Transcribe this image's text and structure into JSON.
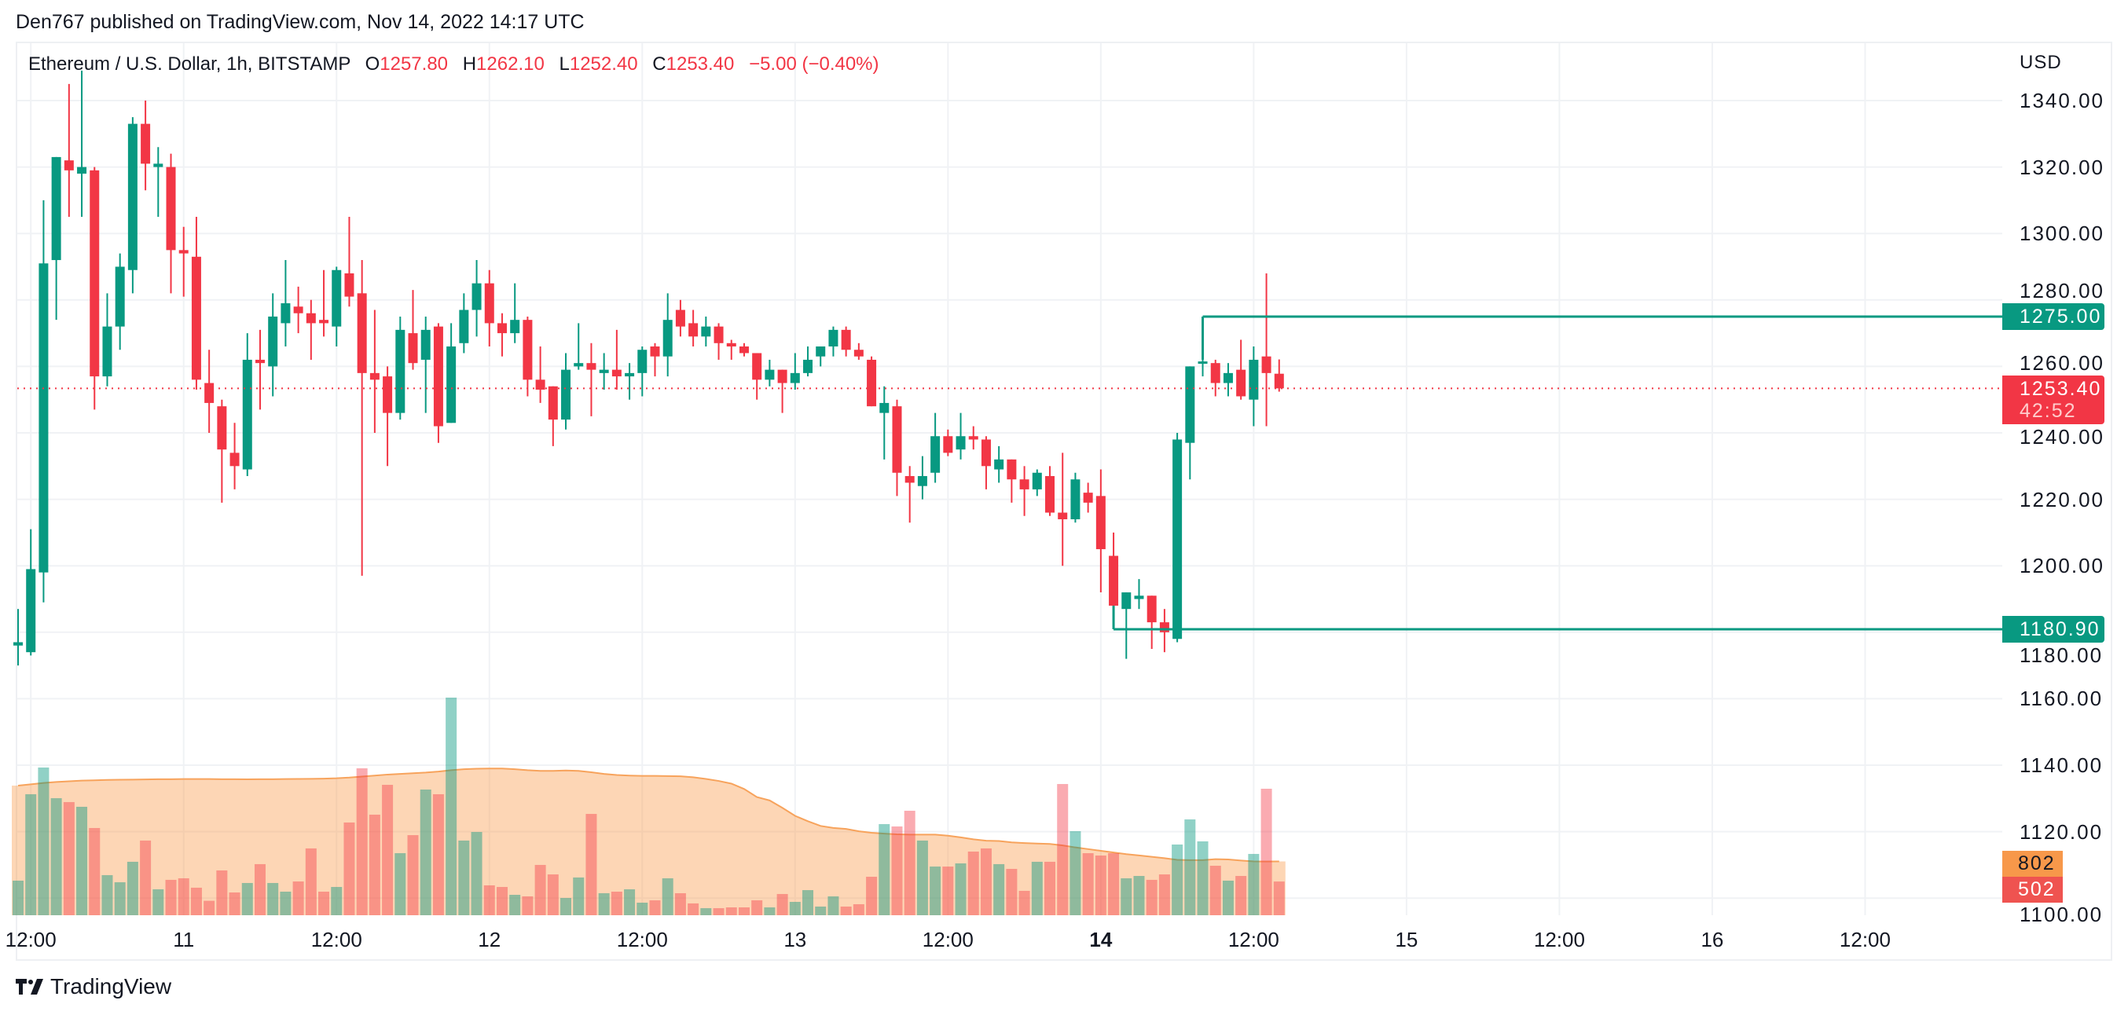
{
  "header": {
    "published": "Den767 published on TradingView.com, Nov 14, 2022 14:17 UTC"
  },
  "legend": {
    "symbol": "Ethereum / U.S. Dollar, 1h, BITSTAMP",
    "o_label": "O",
    "o": "1257.80",
    "h_label": "H",
    "h": "1262.10",
    "l_label": "L",
    "l": "1252.40",
    "c_label": "C",
    "c": "1253.40",
    "change": "−5.00 (−0.40%)"
  },
  "price_axis": {
    "currency": "USD",
    "ticks": [
      "1340.00",
      "1320.00",
      "1300.00",
      "1280.00",
      "1260.00",
      "1240.00",
      "1220.00",
      "1200.00",
      "1180.00",
      "1160.00",
      "1140.00",
      "1120.00",
      "1100.00"
    ],
    "last_price": "1253.40",
    "countdown": "42:52",
    "level_high": "1275.00",
    "level_low": "1180.90",
    "volume_ma": "802",
    "volume_last": "502"
  },
  "time_axis": [
    {
      "label": "12:00",
      "index": 1,
      "bold": false
    },
    {
      "label": "11",
      "index": 13,
      "bold": false
    },
    {
      "label": "12:00",
      "index": 25,
      "bold": false
    },
    {
      "label": "12",
      "index": 37,
      "bold": false
    },
    {
      "label": "12:00",
      "index": 49,
      "bold": false
    },
    {
      "label": "13",
      "index": 61,
      "bold": false
    },
    {
      "label": "12:00",
      "index": 73,
      "bold": false
    },
    {
      "label": "14",
      "index": 85,
      "bold": true
    },
    {
      "label": "12:00",
      "index": 97,
      "bold": false
    },
    {
      "label": "15",
      "index": 109,
      "bold": false
    },
    {
      "label": "12:00",
      "index": 121,
      "bold": false
    },
    {
      "label": "16",
      "index": 133,
      "bold": false
    },
    {
      "label": "12:00",
      "index": 145,
      "bold": false
    }
  ],
  "branding": {
    "logo_text": "TradingView"
  },
  "colors": {
    "up": "#089981",
    "down": "#f23645",
    "ma": "#f7a35c",
    "grid": "#f0f2f5"
  },
  "chart_data": {
    "type": "candlestick",
    "title": "Ethereum / U.S. Dollar, 1h, BITSTAMP",
    "ylim": [
      1100,
      1350
    ],
    "ohlc": [
      [
        1176,
        1187,
        1170,
        1177
      ],
      [
        1174,
        1211,
        1173,
        1199
      ],
      [
        1198,
        1310,
        1189,
        1291
      ],
      [
        1292,
        1323,
        1274,
        1323
      ],
      [
        1322,
        1345,
        1305,
        1319
      ],
      [
        1318,
        1349,
        1305,
        1320
      ],
      [
        1319,
        1320,
        1247,
        1257
      ],
      [
        1257,
        1282,
        1254,
        1272
      ],
      [
        1272,
        1294,
        1265,
        1290
      ],
      [
        1289,
        1335,
        1282,
        1333
      ],
      [
        1333,
        1340,
        1313,
        1321
      ],
      [
        1320,
        1326,
        1305,
        1321
      ],
      [
        1320,
        1324,
        1282,
        1295
      ],
      [
        1295,
        1302,
        1281,
        1294
      ],
      [
        1293,
        1305,
        1253,
        1256
      ],
      [
        1255,
        1265,
        1240,
        1249
      ],
      [
        1248,
        1250,
        1219,
        1235
      ],
      [
        1234,
        1243,
        1223,
        1230
      ],
      [
        1229,
        1270,
        1227,
        1262
      ],
      [
        1262,
        1271,
        1247,
        1261
      ],
      [
        1260,
        1282,
        1251,
        1275
      ],
      [
        1273,
        1292,
        1266,
        1279
      ],
      [
        1278,
        1284,
        1270,
        1276
      ],
      [
        1276,
        1280,
        1262,
        1273
      ],
      [
        1274,
        1289,
        1269,
        1273
      ],
      [
        1272,
        1290,
        1266,
        1289
      ],
      [
        1288,
        1305,
        1278,
        1281
      ],
      [
        1282,
        1292,
        1197,
        1258
      ],
      [
        1258,
        1277,
        1240,
        1256
      ],
      [
        1257,
        1260,
        1230,
        1246
      ],
      [
        1246,
        1275,
        1244,
        1271
      ],
      [
        1270,
        1283,
        1259,
        1261
      ],
      [
        1262,
        1275,
        1246,
        1271
      ],
      [
        1272,
        1273,
        1237,
        1242
      ],
      [
        1243,
        1273,
        1243,
        1266
      ],
      [
        1267,
        1282,
        1264,
        1277
      ],
      [
        1277,
        1292,
        1269,
        1285
      ],
      [
        1285,
        1289,
        1266,
        1273
      ],
      [
        1273,
        1276,
        1263,
        1270
      ],
      [
        1270,
        1285,
        1267,
        1274
      ],
      [
        1274,
        1275,
        1251,
        1256
      ],
      [
        1256,
        1266,
        1249,
        1253
      ],
      [
        1254,
        1254,
        1236,
        1244
      ],
      [
        1244,
        1264,
        1241,
        1259
      ],
      [
        1260,
        1273,
        1259,
        1261
      ],
      [
        1261,
        1267,
        1245,
        1259
      ],
      [
        1258,
        1264,
        1253,
        1259
      ],
      [
        1259,
        1271,
        1253,
        1257
      ],
      [
        1257,
        1261,
        1250,
        1258
      ],
      [
        1258,
        1266,
        1251,
        1265
      ],
      [
        1266,
        1267,
        1257,
        1263
      ],
      [
        1263,
        1282,
        1257,
        1274
      ],
      [
        1277,
        1280,
        1269,
        1272
      ],
      [
        1273,
        1277,
        1266,
        1269
      ],
      [
        1269,
        1275,
        1266,
        1272
      ],
      [
        1272,
        1273,
        1262,
        1267
      ],
      [
        1267,
        1268,
        1262,
        1266
      ],
      [
        1266,
        1267,
        1263,
        1264
      ],
      [
        1264,
        1264,
        1250,
        1256
      ],
      [
        1256,
        1262,
        1254,
        1259
      ],
      [
        1259,
        1259,
        1246,
        1255
      ],
      [
        1255,
        1264,
        1253,
        1258
      ],
      [
        1258,
        1266,
        1257,
        1262
      ],
      [
        1263,
        1266,
        1260,
        1266
      ],
      [
        1266,
        1272,
        1263,
        1271
      ],
      [
        1271,
        1272,
        1263,
        1265
      ],
      [
        1265,
        1267,
        1262,
        1263
      ],
      [
        1262,
        1263,
        1248,
        1248
      ],
      [
        1246,
        1254,
        1232,
        1249
      ],
      [
        1248,
        1250,
        1221,
        1228
      ],
      [
        1227,
        1230,
        1213,
        1225
      ],
      [
        1224,
        1233,
        1220,
        1227
      ],
      [
        1228,
        1246,
        1225,
        1239
      ],
      [
        1239,
        1241,
        1233,
        1234
      ],
      [
        1235,
        1246,
        1232,
        1239
      ],
      [
        1239,
        1242,
        1235,
        1238
      ],
      [
        1238,
        1239,
        1223,
        1230
      ],
      [
        1229,
        1236,
        1225,
        1232
      ],
      [
        1232,
        1232,
        1219,
        1226
      ],
      [
        1226,
        1230,
        1215,
        1223
      ],
      [
        1223,
        1229,
        1221,
        1228
      ],
      [
        1227,
        1230,
        1215,
        1216
      ],
      [
        1216,
        1234,
        1200,
        1214
      ],
      [
        1214,
        1228,
        1213,
        1226
      ],
      [
        1222,
        1225,
        1216,
        1219
      ],
      [
        1221,
        1229,
        1192,
        1205
      ],
      [
        1203,
        1210,
        1181,
        1188
      ],
      [
        1187,
        1192,
        1172,
        1192
      ],
      [
        1190,
        1196,
        1187,
        1191
      ],
      [
        1191,
        1191,
        1175,
        1183
      ],
      [
        1183,
        1187,
        1174,
        1180
      ],
      [
        1178,
        1240,
        1177,
        1238
      ],
      [
        1237,
        1260,
        1226,
        1260
      ],
      [
        1261,
        1262,
        1257,
        1261.5
      ],
      [
        1261,
        1262,
        1251,
        1255
      ],
      [
        1255,
        1261,
        1251,
        1258
      ],
      [
        1259,
        1268,
        1250,
        1251
      ],
      [
        1250,
        1266,
        1242,
        1262
      ],
      [
        1263,
        1288,
        1242,
        1258
      ],
      [
        1257.8,
        1262.1,
        1252.4,
        1253.4
      ]
    ],
    "volume": [
      515,
      1802,
      2200,
      1743,
      1685,
      1615,
      1299,
      597,
      491,
      796,
      1112,
      386,
      527,
      550,
      410,
      215,
      667,
      339,
      480,
      761,
      480,
      351,
      503,
      995,
      351,
      421,
      1381,
      2188,
      1498,
      1942,
      924,
      1193,
      1872,
      1802,
      3241,
      1112,
      1240,
      445,
      421,
      304,
      281,
      749,
      608,
      257,
      562,
      1509,
      328,
      351,
      386,
      187,
      222,
      550,
      328,
      176,
      105,
      105,
      117,
      117,
      222,
      117,
      316,
      199,
      374,
      129,
      281,
      129,
      164,
      573,
      1357,
      1322,
      1556,
      1112,
      725,
      725,
      772,
      948,
      995,
      761,
      690,
      363,
      796,
      796,
      1954,
      1252,
      924,
      889,
      924,
      550,
      585,
      527,
      608,
      1053,
      1427,
      1100,
      737,
      515,
      585,
      913,
      1884,
      502
    ],
    "volume_ma": [
      1930,
      1950,
      1970,
      1985,
      1995,
      2005,
      2010,
      2015,
      2018,
      2020,
      2022,
      2025,
      2026,
      2028,
      2028,
      2028,
      2026,
      2025,
      2024,
      2025,
      2026,
      2028,
      2030,
      2032,
      2035,
      2040,
      2050,
      2065,
      2080,
      2095,
      2105,
      2115,
      2125,
      2140,
      2160,
      2175,
      2182,
      2185,
      2185,
      2175,
      2160,
      2150,
      2150,
      2155,
      2150,
      2130,
      2105,
      2088,
      2080,
      2075,
      2075,
      2073,
      2070,
      2055,
      2030,
      2000,
      1960,
      1880,
      1760,
      1710,
      1600,
      1480,
      1400,
      1330,
      1300,
      1285,
      1250,
      1228,
      1215,
      1205,
      1200,
      1200,
      1200,
      1185,
      1160,
      1130,
      1110,
      1105,
      1085,
      1075,
      1068,
      1062,
      1040,
      1010,
      985,
      960,
      935,
      910,
      890,
      870,
      850,
      825,
      820,
      820,
      835,
      830,
      815,
      802,
      800,
      802
    ],
    "horizontal_levels": [
      {
        "price": 1275.0,
        "start_index": 94,
        "anchor_price": 1262
      },
      {
        "price": 1180.9,
        "start_index": 87,
        "anchor_price": 1188
      }
    ]
  }
}
